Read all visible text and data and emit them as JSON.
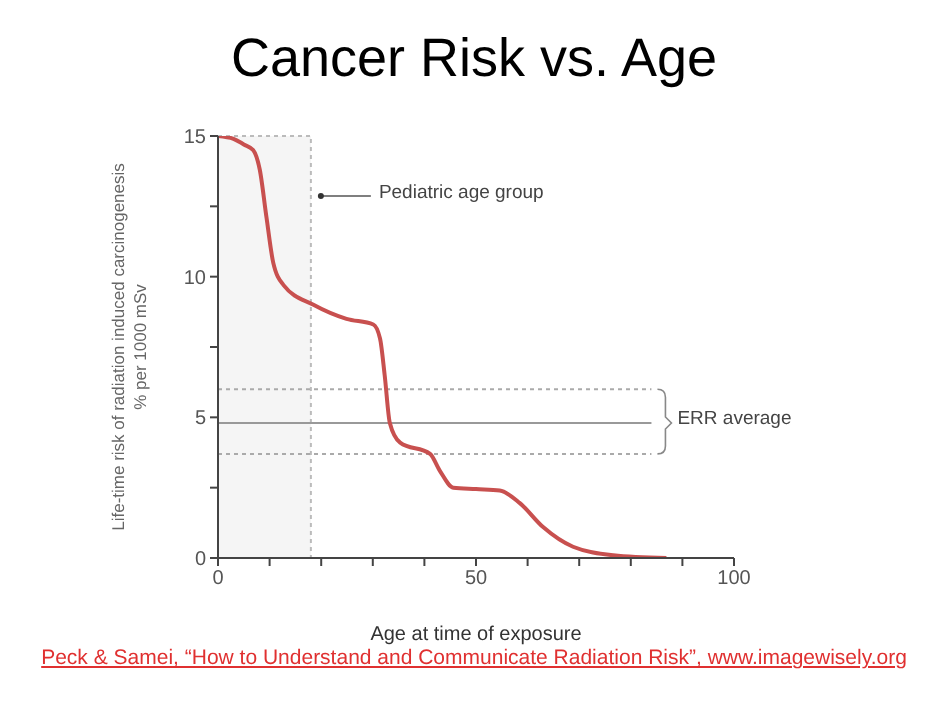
{
  "chart_data": {
    "type": "line",
    "title": "Cancer Risk vs. Age",
    "xlabel": "Age at time of exposure",
    "ylabel": "Life-time risk of radiation induced carcinogenesis\n% per 1000 mSv",
    "x": [
      0,
      3,
      5,
      6.8,
      8.1,
      9.4,
      10.7,
      12.7,
      18.5,
      24.9,
      30.1,
      31.4,
      32.3,
      33.3,
      35.3,
      41.1,
      43,
      45.6,
      50,
      54.6,
      58.5,
      63,
      68.8,
      76.6,
      86.9
    ],
    "series": [
      {
        "color": "#c8504f",
        "values": [
          15,
          14.9,
          14.7,
          14.5,
          13.8,
          12.1,
          10.5,
          9.7,
          9,
          8.5,
          8.3,
          7.8,
          6.5,
          4.8,
          4.1,
          3.7,
          3.1,
          2.5,
          2.45,
          2.4,
          1.95,
          1.1,
          0.4,
          0.1,
          0
        ]
      }
    ],
    "xlim": [
      0,
      100
    ],
    "xticks": [
      0,
      {
        "value": 10,
        "label": null
      },
      {
        "value": 20,
        "label": null
      },
      {
        "value": 30,
        "label": null
      },
      {
        "value": 40,
        "label": null
      },
      50,
      {
        "value": 60,
        "label": null
      },
      {
        "value": 70,
        "label": null
      },
      {
        "value": 80,
        "label": null
      },
      {
        "value": 90,
        "label": null
      },
      100
    ],
    "ylim": [
      0,
      15
    ],
    "yticks": [
      0,
      {
        "value": 2.5,
        "label": null
      },
      5,
      {
        "value": 7.5,
        "label": null
      },
      10,
      {
        "value": 12.5,
        "label": null
      },
      15
    ],
    "grid": false,
    "legend": false,
    "marker": "none",
    "line_style": "solid",
    "ref_lines": [
      {
        "axis": "y",
        "value": 6,
        "color": "#aaaaaa",
        "line_style": "dotted"
      },
      {
        "axis": "y",
        "value": 4.8,
        "color": "#999999",
        "line_style": "solid"
      },
      {
        "axis": "y",
        "value": 3.7,
        "color": "#aaaaaa",
        "line_style": "dotted"
      }
    ],
    "bands": [
      {
        "axis": "x",
        "from": 0,
        "to": 18,
        "color": "#bbbbbb"
      }
    ],
    "annotations": [
      "Pediatric age group",
      {
        "text": "ERR average",
        "x": 84,
        "y": 4.8
      },
      "Peck & Samei, “How to Understand and Communicate Radiation Risk”,  www.imagewisely.org"
    ]
  }
}
